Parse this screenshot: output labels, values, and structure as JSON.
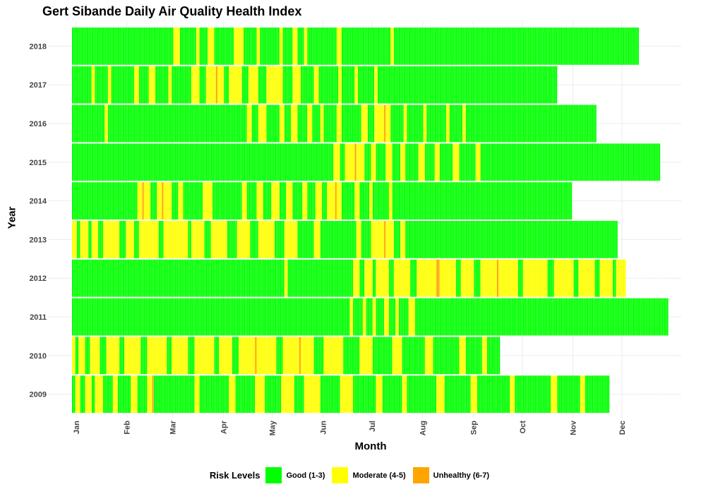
{
  "chart_data": {
    "type": "heatmap",
    "title": "Gert Sibande Daily Air Quality Health Index",
    "xlabel": "Month",
    "ylabel": "Year",
    "x_ticks": [
      "Jan",
      "Feb",
      "Mar",
      "Apr",
      "May",
      "Jun",
      "Jul",
      "Aug",
      "Sep",
      "Oct",
      "Nov",
      "Dec"
    ],
    "years": [
      2009,
      2010,
      2011,
      2012,
      2013,
      2014,
      2015,
      2016,
      2017,
      2018
    ],
    "grid": true,
    "legend": {
      "title": "Risk Levels",
      "position": "bottom",
      "items": [
        {
          "label": "Good (1-3)",
          "color": "#00FF00"
        },
        {
          "label": "Moderate (4-5)",
          "color": "#FFFF00"
        },
        {
          "label": "Unhealthy (6-7)",
          "color": "#FFA500"
        }
      ]
    },
    "daily_risk_by_year": [
      {
        "year": 2018,
        "segments": [
          [
            "good",
            62
          ],
          [
            "moderate",
            4
          ],
          [
            "good",
            10
          ],
          [
            "moderate",
            2
          ],
          [
            "good",
            5
          ],
          [
            "moderate",
            4
          ],
          [
            "good",
            12
          ],
          [
            "moderate",
            6
          ],
          [
            "good",
            8
          ],
          [
            "moderate",
            2
          ],
          [
            "good",
            12
          ],
          [
            "moderate",
            2
          ],
          [
            "good",
            6
          ],
          [
            "moderate",
            3
          ],
          [
            "good",
            4
          ],
          [
            "moderate",
            2
          ],
          [
            "good",
            18
          ],
          [
            "moderate",
            3
          ],
          [
            "good",
            30
          ],
          [
            "moderate",
            2
          ],
          [
            "good",
            150
          ]
        ]
      },
      {
        "year": 2017,
        "segments": [
          [
            "good",
            12
          ],
          [
            "moderate",
            2
          ],
          [
            "good",
            8
          ],
          [
            "moderate",
            2
          ],
          [
            "good",
            14
          ],
          [
            "moderate",
            3
          ],
          [
            "good",
            6
          ],
          [
            "moderate",
            4
          ],
          [
            "good",
            8
          ],
          [
            "moderate",
            2
          ],
          [
            "good",
            12
          ],
          [
            "moderate",
            5
          ],
          [
            "good",
            4
          ],
          [
            "moderate",
            6
          ],
          [
            "unhealthy",
            1
          ],
          [
            "moderate",
            4
          ],
          [
            "good",
            3
          ],
          [
            "moderate",
            8
          ],
          [
            "good",
            4
          ],
          [
            "moderate",
            6
          ],
          [
            "good",
            5
          ],
          [
            "moderate",
            10
          ],
          [
            "good",
            6
          ],
          [
            "moderate",
            5
          ],
          [
            "good",
            8
          ],
          [
            "moderate",
            3
          ],
          [
            "good",
            12
          ],
          [
            "moderate",
            2
          ],
          [
            "good",
            8
          ],
          [
            "moderate",
            2
          ],
          [
            "good",
            10
          ],
          [
            "moderate",
            2
          ],
          [
            "good",
            110
          ]
        ]
      },
      {
        "year": 2016,
        "segments": [
          [
            "good",
            20
          ],
          [
            "moderate",
            2
          ],
          [
            "good",
            85
          ],
          [
            "moderate",
            3
          ],
          [
            "good",
            4
          ],
          [
            "moderate",
            5
          ],
          [
            "good",
            8
          ],
          [
            "moderate",
            3
          ],
          [
            "good",
            4
          ],
          [
            "moderate",
            4
          ],
          [
            "good",
            6
          ],
          [
            "moderate",
            3
          ],
          [
            "good",
            5
          ],
          [
            "moderate",
            2
          ],
          [
            "good",
            8
          ],
          [
            "moderate",
            3
          ],
          [
            "good",
            12
          ],
          [
            "moderate",
            4
          ],
          [
            "good",
            4
          ],
          [
            "moderate",
            6
          ],
          [
            "unhealthy",
            1
          ],
          [
            "moderate",
            3
          ],
          [
            "good",
            8
          ],
          [
            "moderate",
            2
          ],
          [
            "good",
            10
          ],
          [
            "moderate",
            2
          ],
          [
            "good",
            12
          ],
          [
            "moderate",
            2
          ],
          [
            "good",
            8
          ],
          [
            "moderate",
            2
          ],
          [
            "good",
            80
          ]
        ]
      },
      {
        "year": 2015,
        "segments": [
          [
            "good",
            160
          ],
          [
            "moderate",
            4
          ],
          [
            "good",
            3
          ],
          [
            "moderate",
            6
          ],
          [
            "unhealthy",
            1
          ],
          [
            "moderate",
            5
          ],
          [
            "good",
            4
          ],
          [
            "moderate",
            3
          ],
          [
            "good",
            6
          ],
          [
            "moderate",
            4
          ],
          [
            "good",
            5
          ],
          [
            "moderate",
            3
          ],
          [
            "good",
            8
          ],
          [
            "moderate",
            4
          ],
          [
            "good",
            6
          ],
          [
            "moderate",
            3
          ],
          [
            "good",
            8
          ],
          [
            "moderate",
            4
          ],
          [
            "good",
            10
          ],
          [
            "moderate",
            3
          ],
          [
            "good",
            110
          ]
        ]
      },
      {
        "year": 2014,
        "segments": [
          [
            "good",
            40
          ],
          [
            "moderate",
            3
          ],
          [
            "unhealthy",
            1
          ],
          [
            "moderate",
            4
          ],
          [
            "good",
            4
          ],
          [
            "moderate",
            3
          ],
          [
            "unhealthy",
            1
          ],
          [
            "moderate",
            5
          ],
          [
            "good",
            4
          ],
          [
            "moderate",
            3
          ],
          [
            "good",
            12
          ],
          [
            "moderate",
            6
          ],
          [
            "good",
            18
          ],
          [
            "moderate",
            3
          ],
          [
            "good",
            6
          ],
          [
            "moderate",
            4
          ],
          [
            "good",
            5
          ],
          [
            "moderate",
            5
          ],
          [
            "good",
            4
          ],
          [
            "moderate",
            4
          ],
          [
            "good",
            6
          ],
          [
            "moderate",
            3
          ],
          [
            "good",
            5
          ],
          [
            "moderate",
            4
          ],
          [
            "good",
            3
          ],
          [
            "moderate",
            5
          ],
          [
            "unhealthy",
            1
          ],
          [
            "moderate",
            3
          ],
          [
            "good",
            8
          ],
          [
            "moderate",
            3
          ],
          [
            "good",
            6
          ],
          [
            "moderate",
            2
          ],
          [
            "good",
            10
          ],
          [
            "moderate",
            2
          ],
          [
            "good",
            110
          ]
        ]
      },
      {
        "year": 2013,
        "segments": [
          [
            "moderate",
            3
          ],
          [
            "good",
            2
          ],
          [
            "moderate",
            5
          ],
          [
            "good",
            2
          ],
          [
            "moderate",
            4
          ],
          [
            "good",
            3
          ],
          [
            "moderate",
            10
          ],
          [
            "good",
            4
          ],
          [
            "moderate",
            5
          ],
          [
            "good",
            3
          ],
          [
            "moderate",
            12
          ],
          [
            "good",
            3
          ],
          [
            "moderate",
            15
          ],
          [
            "good",
            2
          ],
          [
            "moderate",
            8
          ],
          [
            "good",
            4
          ],
          [
            "moderate",
            10
          ],
          [
            "good",
            6
          ],
          [
            "moderate",
            8
          ],
          [
            "good",
            5
          ],
          [
            "moderate",
            10
          ],
          [
            "good",
            6
          ],
          [
            "moderate",
            8
          ],
          [
            "good",
            10
          ],
          [
            "moderate",
            4
          ],
          [
            "good",
            22
          ],
          [
            "moderate",
            3
          ],
          [
            "good",
            6
          ],
          [
            "moderate",
            8
          ],
          [
            "unhealthy",
            1
          ],
          [
            "moderate",
            5
          ],
          [
            "good",
            4
          ],
          [
            "moderate",
            3
          ],
          [
            "good",
            130
          ]
        ]
      },
      {
        "year": 2012,
        "segments": [
          [
            "good",
            130
          ],
          [
            "moderate",
            2
          ],
          [
            "good",
            40
          ],
          [
            "moderate",
            4
          ],
          [
            "good",
            3
          ],
          [
            "moderate",
            5
          ],
          [
            "good",
            2
          ],
          [
            "moderate",
            8
          ],
          [
            "good",
            3
          ],
          [
            "moderate",
            10
          ],
          [
            "good",
            4
          ],
          [
            "moderate",
            12
          ],
          [
            "unhealthy",
            2
          ],
          [
            "moderate",
            10
          ],
          [
            "good",
            3
          ],
          [
            "moderate",
            8
          ],
          [
            "good",
            4
          ],
          [
            "moderate",
            10
          ],
          [
            "unhealthy",
            1
          ],
          [
            "moderate",
            12
          ],
          [
            "good",
            3
          ],
          [
            "moderate",
            15
          ],
          [
            "good",
            4
          ],
          [
            "moderate",
            12
          ],
          [
            "good",
            3
          ],
          [
            "moderate",
            10
          ],
          [
            "good",
            3
          ],
          [
            "moderate",
            8
          ],
          [
            "good",
            2
          ],
          [
            "moderate",
            6
          ]
        ]
      },
      {
        "year": 2011,
        "segments": [
          [
            "good",
            170
          ],
          [
            "moderate",
            2
          ],
          [
            "good",
            6
          ],
          [
            "moderate",
            2
          ],
          [
            "good",
            4
          ],
          [
            "moderate",
            2
          ],
          [
            "good",
            5
          ],
          [
            "moderate",
            3
          ],
          [
            "good",
            4
          ],
          [
            "moderate",
            2
          ],
          [
            "good",
            6
          ],
          [
            "moderate",
            4
          ],
          [
            "good",
            155
          ]
        ]
      },
      {
        "year": 2010,
        "segments": [
          [
            "moderate",
            2
          ],
          [
            "good",
            2
          ],
          [
            "moderate",
            4
          ],
          [
            "good",
            3
          ],
          [
            "moderate",
            6
          ],
          [
            "good",
            4
          ],
          [
            "moderate",
            8
          ],
          [
            "good",
            3
          ],
          [
            "moderate",
            10
          ],
          [
            "good",
            4
          ],
          [
            "moderate",
            12
          ],
          [
            "good",
            3
          ],
          [
            "moderate",
            10
          ],
          [
            "good",
            4
          ],
          [
            "moderate",
            12
          ],
          [
            "good",
            3
          ],
          [
            "moderate",
            8
          ],
          [
            "good",
            4
          ],
          [
            "moderate",
            10
          ],
          [
            "unhealthy",
            1
          ],
          [
            "moderate",
            12
          ],
          [
            "good",
            4
          ],
          [
            "moderate",
            10
          ],
          [
            "unhealthy",
            1
          ],
          [
            "moderate",
            8
          ],
          [
            "good",
            6
          ],
          [
            "moderate",
            12
          ],
          [
            "good",
            10
          ],
          [
            "moderate",
            8
          ],
          [
            "good",
            12
          ],
          [
            "moderate",
            6
          ],
          [
            "good",
            14
          ],
          [
            "moderate",
            5
          ],
          [
            "good",
            16
          ],
          [
            "moderate",
            4
          ],
          [
            "good",
            10
          ],
          [
            "moderate",
            3
          ],
          [
            "good",
            8
          ]
        ]
      },
      {
        "year": 2009,
        "segments": [
          [
            "good",
            2
          ],
          [
            "moderate",
            3
          ],
          [
            "good",
            3
          ],
          [
            "moderate",
            4
          ],
          [
            "good",
            2
          ],
          [
            "moderate",
            5
          ],
          [
            "good",
            6
          ],
          [
            "moderate",
            3
          ],
          [
            "good",
            8
          ],
          [
            "moderate",
            4
          ],
          [
            "good",
            6
          ],
          [
            "moderate",
            3
          ],
          [
            "unhealthy",
            1
          ],
          [
            "good",
            25
          ],
          [
            "moderate",
            3
          ],
          [
            "good",
            18
          ],
          [
            "moderate",
            4
          ],
          [
            "good",
            12
          ],
          [
            "moderate",
            6
          ],
          [
            "good",
            10
          ],
          [
            "moderate",
            8
          ],
          [
            "good",
            6
          ],
          [
            "moderate",
            10
          ],
          [
            "good",
            12
          ],
          [
            "moderate",
            8
          ],
          [
            "good",
            14
          ],
          [
            "moderate",
            4
          ],
          [
            "good",
            12
          ],
          [
            "moderate",
            3
          ],
          [
            "good",
            18
          ],
          [
            "moderate",
            5
          ],
          [
            "good",
            16
          ],
          [
            "moderate",
            4
          ],
          [
            "good",
            20
          ],
          [
            "moderate",
            3
          ],
          [
            "good",
            22
          ],
          [
            "moderate",
            4
          ],
          [
            "good",
            14
          ],
          [
            "moderate",
            3
          ],
          [
            "good",
            15
          ]
        ]
      }
    ]
  }
}
